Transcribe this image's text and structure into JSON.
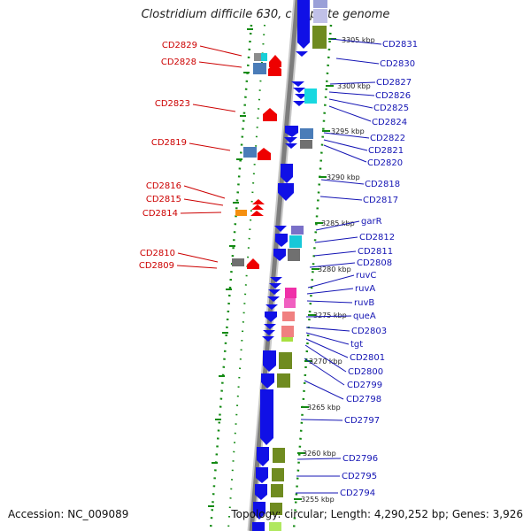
{
  "title": "Clostridium difficile 630, complete genome",
  "accession": "Accession: NC_009089",
  "summary": "Topology: circular; Length: 4,290,252 bp; Genes: 3,926",
  "colors": {
    "backbone": "#7d7d7d",
    "forward_cds": "#1010e6",
    "reverse_cds": "#ee0000",
    "tick": "#138a13",
    "left_label": "#cc0000",
    "right_label": "#1414b4"
  },
  "kbp_labels": [
    "3305 kbp",
    "3300 kbp",
    "3295 kbp",
    "3290 kbp",
    "3285 kbp",
    "3280 kbp",
    "3275 kbp",
    "3270 kbp",
    "3265 kbp",
    "3260 kbp",
    "3255 kbp"
  ],
  "left_labels": [
    "CD2829",
    "CD2828",
    "CD2823",
    "CD2819",
    "CD2816",
    "CD2815",
    "CD2814",
    "CD2810",
    "CD2809"
  ],
  "right_labels": [
    "CD2831",
    "CD2830",
    "CD2827",
    "CD2826",
    "CD2825",
    "CD2824",
    "CD2822",
    "CD2821",
    "CD2820",
    "CD2818",
    "CD2817",
    "garR",
    "CD2812",
    "CD2811",
    "CD2808",
    "ruvC",
    "ruvA",
    "ruvB",
    "queA",
    "CD2803",
    "tgt",
    "CD2801",
    "CD2800",
    "CD2799",
    "CD2798",
    "CD2797",
    "CD2796",
    "CD2795",
    "CD2794"
  ]
}
